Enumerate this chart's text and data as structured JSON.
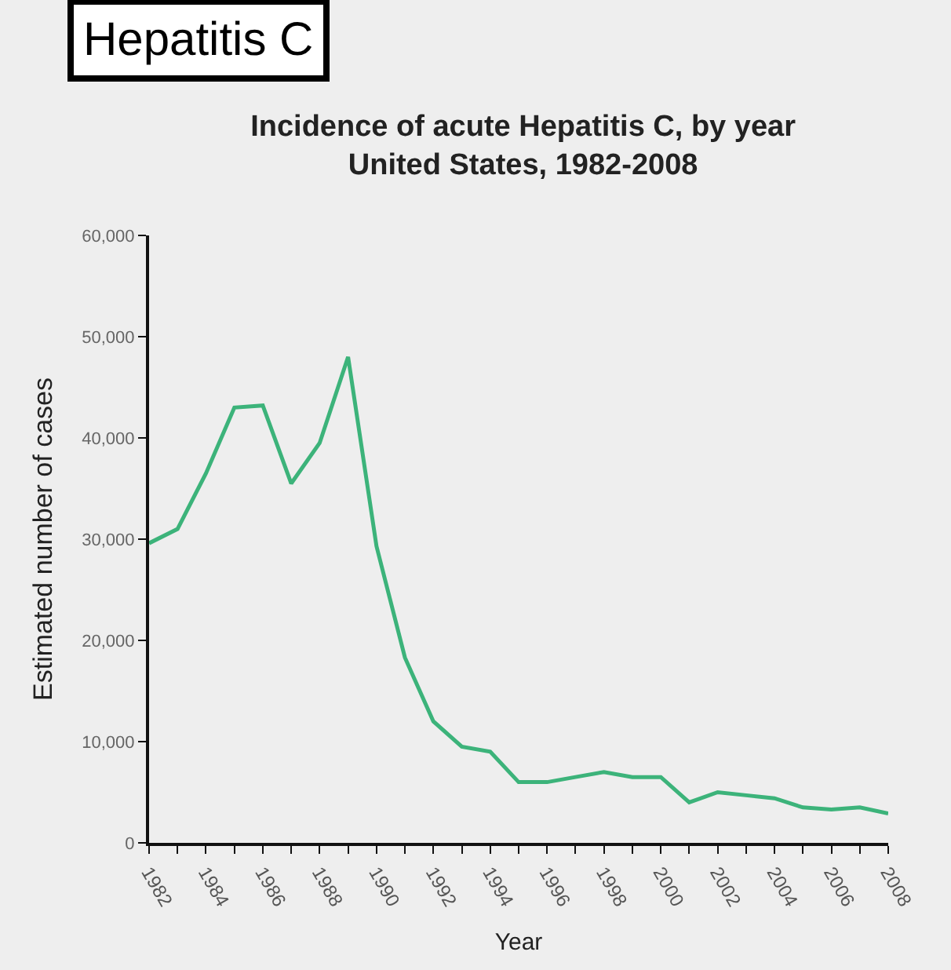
{
  "chart_data": {
    "type": "line",
    "title": "Incidence of acute Hepatitis C, by year\nUnited States, 1982-2008",
    "annotations": [
      "Hepatitis C"
    ],
    "xlabel": "Year",
    "ylabel": "Estimated number of cases",
    "x": [
      1982,
      1983,
      1984,
      1985,
      1986,
      1987,
      1988,
      1989,
      1990,
      1991,
      1992,
      1993,
      1994,
      1995,
      1996,
      1997,
      1998,
      1999,
      2000,
      2001,
      2002,
      2003,
      2004,
      2005,
      2006,
      2007,
      2008
    ],
    "series": [
      {
        "color": "#3cb37a",
        "values": [
          29600,
          31000,
          36500,
          43000,
          43200,
          35500,
          39500,
          48000,
          29300,
          18300,
          12000,
          9500,
          9000,
          6000,
          6000,
          6500,
          7000,
          6500,
          6500,
          4000,
          5000,
          4700,
          4400,
          3500,
          3300,
          3500,
          2900
        ]
      }
    ],
    "xlim": [
      1982,
      2008
    ],
    "xticks": [
      1982,
      {
        "value": 1983,
        "label": null
      },
      1984,
      {
        "value": 1985,
        "label": null
      },
      1986,
      {
        "value": 1987,
        "label": null
      },
      1988,
      {
        "value": 1989,
        "label": null
      },
      1990,
      {
        "value": 1991,
        "label": null
      },
      1992,
      {
        "value": 1993,
        "label": null
      },
      1994,
      {
        "value": 1995,
        "label": null
      },
      1996,
      {
        "value": 1997,
        "label": null
      },
      1998,
      {
        "value": 1999,
        "label": null
      },
      2000,
      {
        "value": 2001,
        "label": null
      },
      2002,
      {
        "value": 2003,
        "label": null
      },
      2004,
      {
        "value": 2005,
        "label": null
      },
      2006,
      {
        "value": 2007,
        "label": null
      },
      2008
    ],
    "ylim": [
      0,
      60000
    ],
    "yticks": [
      {
        "value": 0,
        "label": "0"
      },
      {
        "value": 10000,
        "label": "10,000"
      },
      {
        "value": 20000,
        "label": "20,000"
      },
      {
        "value": 30000,
        "label": "30,000"
      },
      {
        "value": 40000,
        "label": "40,000"
      },
      {
        "value": 50000,
        "label": "50,000"
      },
      {
        "value": 60000,
        "label": "60,000"
      }
    ],
    "grid": false,
    "marker": "none",
    "line_style": "solid"
  }
}
